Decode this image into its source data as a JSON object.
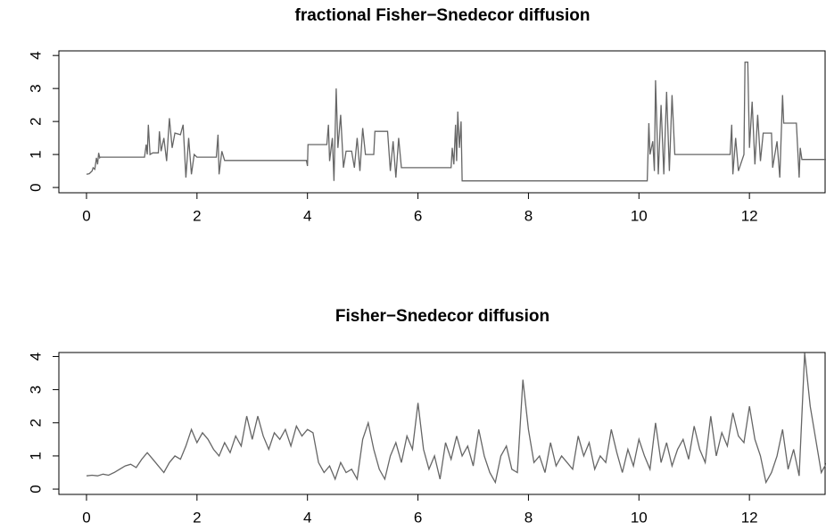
{
  "chart_data": [
    {
      "type": "line",
      "title": "fractional Fisher−Snedecor diffusion",
      "color": "#666666",
      "x": [
        0,
        0.05,
        0.1,
        0.12,
        0.15,
        0.18,
        0.2,
        0.22,
        0.24,
        0.25,
        1.05,
        1.08,
        1.1,
        1.12,
        1.15,
        1.2,
        1.3,
        1.32,
        1.35,
        1.4,
        1.45,
        1.5,
        1.55,
        1.6,
        1.7,
        1.75,
        1.8,
        1.85,
        1.9,
        1.95,
        2.0,
        2.35,
        2.38,
        2.4,
        2.45,
        2.5,
        3.98,
        4.0,
        4.01,
        4.35,
        4.38,
        4.4,
        4.45,
        4.48,
        4.52,
        4.55,
        4.6,
        4.65,
        4.7,
        4.8,
        4.85,
        4.9,
        4.95,
        5.0,
        5.05,
        5.2,
        5.22,
        5.45,
        5.5,
        5.55,
        5.6,
        5.65,
        5.7,
        6.6,
        6.62,
        6.65,
        6.68,
        6.7,
        6.72,
        6.75,
        6.78,
        6.8,
        10.15,
        10.18,
        10.2,
        10.25,
        10.28,
        10.3,
        10.35,
        10.4,
        10.45,
        10.5,
        10.55,
        10.6,
        10.65,
        11.65,
        11.68,
        11.7,
        11.75,
        11.8,
        11.9,
        11.92,
        11.97,
        12.0,
        12.05,
        12.1,
        12.15,
        12.2,
        12.25,
        12.4,
        12.42,
        12.5,
        12.55,
        12.6,
        12.62,
        12.85,
        12.9,
        12.92,
        12.95,
        13.4
      ],
      "values": [
        0.4,
        0.42,
        0.5,
        0.6,
        0.55,
        0.9,
        0.7,
        1.05,
        0.9,
        0.92,
        0.92,
        1.3,
        1.0,
        1.9,
        1.0,
        1.05,
        1.05,
        1.7,
        1.1,
        1.5,
        0.8,
        2.1,
        1.2,
        1.65,
        1.6,
        1.9,
        0.3,
        1.5,
        0.4,
        1.0,
        0.92,
        0.92,
        1.6,
        0.4,
        1.1,
        0.82,
        0.82,
        0.65,
        1.3,
        1.3,
        1.9,
        0.8,
        1.5,
        0.2,
        3.0,
        1.2,
        2.2,
        0.6,
        1.1,
        1.1,
        0.6,
        1.5,
        0.5,
        1.8,
        1.0,
        1.0,
        1.7,
        1.7,
        0.5,
        1.4,
        0.3,
        1.5,
        0.6,
        0.6,
        1.2,
        0.7,
        1.9,
        0.8,
        2.3,
        1.2,
        2.0,
        0.2,
        0.2,
        1.95,
        1.0,
        1.4,
        0.5,
        3.25,
        0.4,
        2.5,
        0.4,
        2.9,
        0.5,
        2.8,
        1.0,
        1.0,
        1.9,
        0.4,
        1.5,
        0.5,
        1.0,
        3.8,
        3.8,
        1.2,
        2.6,
        0.7,
        2.2,
        0.8,
        1.65,
        1.65,
        0.6,
        1.4,
        0.3,
        2.8,
        1.95,
        1.95,
        0.3,
        1.2,
        0.85,
        0.85
      ],
      "xlim": [
        -0.5,
        13.37
      ],
      "ylim": [
        -0.16,
        4.14
      ],
      "xticks": [
        0,
        2,
        4,
        6,
        8,
        10,
        12
      ],
      "yticks": [
        0,
        1,
        2,
        3,
        4
      ]
    },
    {
      "type": "line",
      "title": "Fisher−Snedecor diffusion",
      "color": "#666666",
      "x": [
        0,
        0.1,
        0.2,
        0.3,
        0.4,
        0.5,
        0.6,
        0.7,
        0.8,
        0.9,
        1,
        1.1,
        1.2,
        1.3,
        1.4,
        1.5,
        1.6,
        1.7,
        1.8,
        1.9,
        2,
        2.1,
        2.2,
        2.3,
        2.4,
        2.5,
        2.6,
        2.7,
        2.8,
        2.9,
        3,
        3.1,
        3.2,
        3.3,
        3.4,
        3.5,
        3.6,
        3.7,
        3.8,
        3.9,
        4,
        4.1,
        4.2,
        4.3,
        4.4,
        4.5,
        4.6,
        4.7,
        4.8,
        4.9,
        5,
        5.1,
        5.2,
        5.3,
        5.4,
        5.5,
        5.6,
        5.7,
        5.8,
        5.9,
        6,
        6.1,
        6.2,
        6.3,
        6.4,
        6.5,
        6.6,
        6.7,
        6.8,
        6.9,
        7,
        7.1,
        7.2,
        7.3,
        7.4,
        7.5,
        7.6,
        7.7,
        7.8,
        7.9,
        8,
        8.1,
        8.2,
        8.3,
        8.4,
        8.5,
        8.6,
        8.7,
        8.8,
        8.9,
        9,
        9.1,
        9.2,
        9.3,
        9.4,
        9.5,
        9.6,
        9.7,
        9.8,
        9.9,
        10,
        10.1,
        10.2,
        10.3,
        10.4,
        10.5,
        10.6,
        10.7,
        10.8,
        10.9,
        11,
        11.1,
        11.2,
        11.3,
        11.4,
        11.5,
        11.6,
        11.7,
        11.8,
        11.9,
        12,
        12.1,
        12.2,
        12.3,
        12.4,
        12.5,
        12.6,
        12.7,
        12.8,
        12.9,
        13,
        13.1,
        13.2,
        13.3,
        13.4
      ],
      "values": [
        0.4,
        0.42,
        0.4,
        0.45,
        0.42,
        0.5,
        0.6,
        0.7,
        0.75,
        0.65,
        0.9,
        1.1,
        0.9,
        0.7,
        0.5,
        0.8,
        1.0,
        0.9,
        1.3,
        1.8,
        1.4,
        1.7,
        1.5,
        1.2,
        1.0,
        1.4,
        1.1,
        1.6,
        1.3,
        2.2,
        1.5,
        2.2,
        1.6,
        1.2,
        1.7,
        1.5,
        1.8,
        1.3,
        1.9,
        1.6,
        1.8,
        1.7,
        0.8,
        0.5,
        0.7,
        0.3,
        0.8,
        0.5,
        0.6,
        0.3,
        1.5,
        2.0,
        1.2,
        0.6,
        0.3,
        1.0,
        1.4,
        0.8,
        1.6,
        1.2,
        2.6,
        1.2,
        0.6,
        1.0,
        0.3,
        1.4,
        0.9,
        1.6,
        1.0,
        1.3,
        0.7,
        1.8,
        1.0,
        0.5,
        0.2,
        1.0,
        1.3,
        0.6,
        0.5,
        3.3,
        1.8,
        0.8,
        1.0,
        0.5,
        1.4,
        0.7,
        1.0,
        0.8,
        0.6,
        1.6,
        1.0,
        1.4,
        0.6,
        1.0,
        0.8,
        1.8,
        1.1,
        0.5,
        1.2,
        0.7,
        1.5,
        1.0,
        0.6,
        2.0,
        0.8,
        1.4,
        0.7,
        1.2,
        1.5,
        0.9,
        1.9,
        1.2,
        0.8,
        2.2,
        1.0,
        1.7,
        1.3,
        2.3,
        1.6,
        1.4,
        2.5,
        1.5,
        1.0,
        0.2,
        0.5,
        1.0,
        1.8,
        0.6,
        1.2,
        0.4,
        4.1,
        2.5,
        1.5,
        0.5,
        0.8
      ],
      "xlim": [
        -0.5,
        13.37
      ],
      "ylim": [
        -0.16,
        4.12
      ],
      "xticks": [
        0,
        2,
        4,
        6,
        8,
        10,
        12
      ],
      "yticks": [
        0,
        1,
        2,
        3,
        4
      ]
    }
  ]
}
